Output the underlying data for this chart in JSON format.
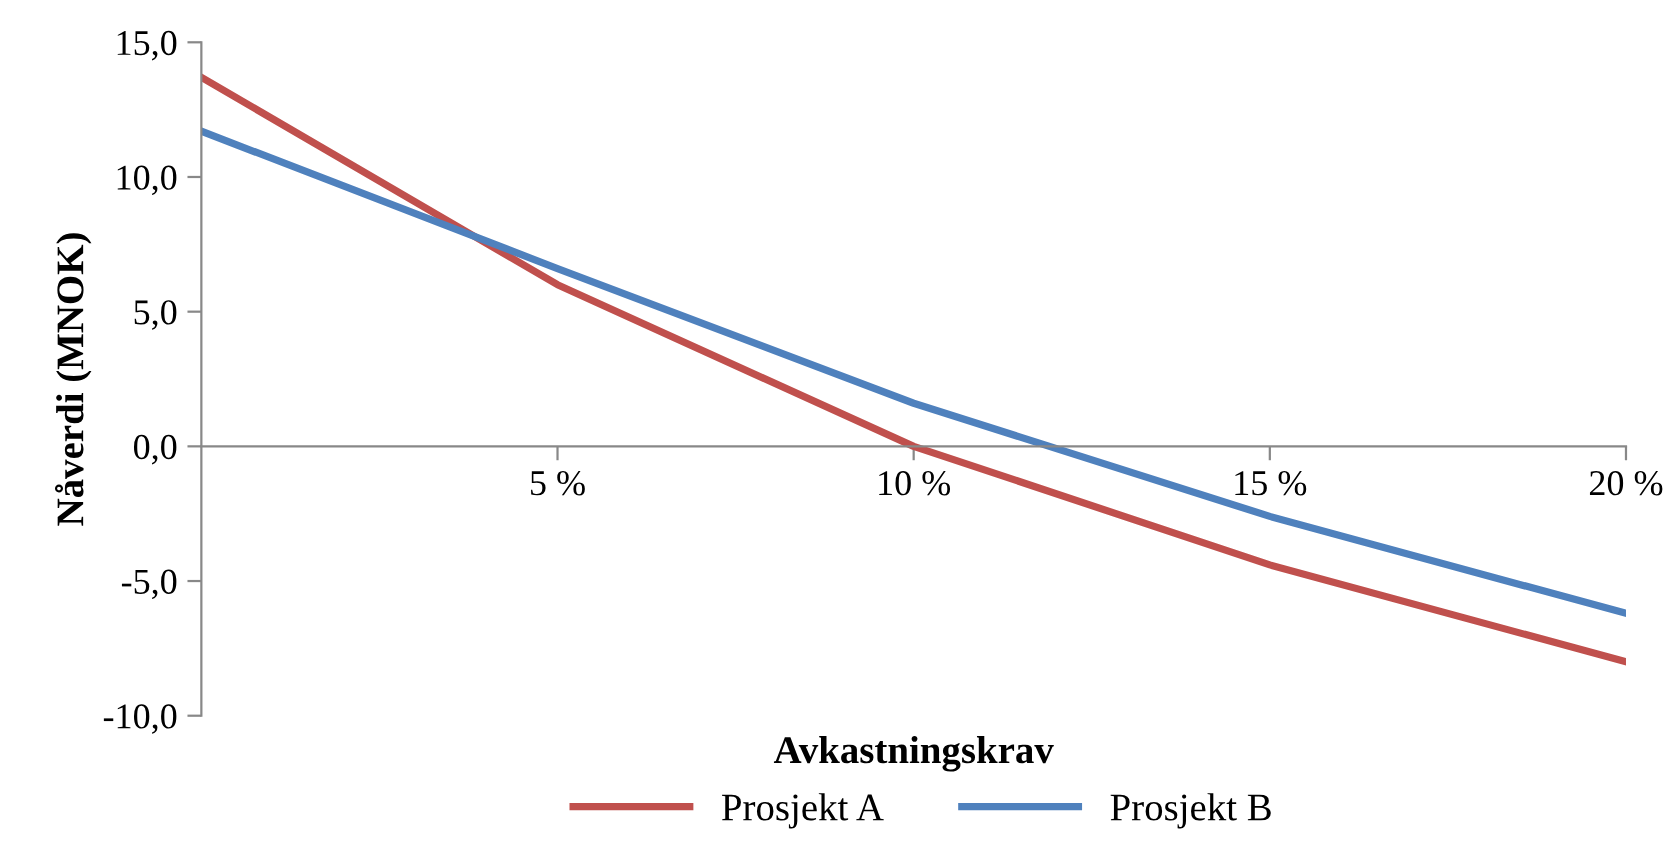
{
  "chart_data": {
    "type": "line",
    "xlabel": "Avkastningskrav",
    "ylabel": "Nåverdi (MNOK)",
    "x": [
      0,
      5,
      10,
      15,
      20
    ],
    "series": [
      {
        "name": "Prosjekt A",
        "color": "#c0504d",
        "values": [
          13.7,
          6.0,
          0.0,
          -4.4,
          -8.0
        ]
      },
      {
        "name": "Prosjekt B",
        "color": "#4f81bd",
        "values": [
          11.7,
          6.6,
          1.6,
          -2.6,
          -6.2
        ]
      }
    ],
    "xlim": [
      0,
      20
    ],
    "xticks": [
      {
        "value": 5,
        "label": "5 %"
      },
      {
        "value": 10,
        "label": "10 %"
      },
      {
        "value": 15,
        "label": "15 %"
      },
      {
        "value": 20,
        "label": "20 %"
      }
    ],
    "ylim": [
      -10,
      15
    ],
    "yticks": [
      {
        "value": -10,
        "label": "-10,0"
      },
      {
        "value": -5,
        "label": "-5,0"
      },
      {
        "value": 0,
        "label": "0,0"
      },
      {
        "value": 5,
        "label": "5,0"
      },
      {
        "value": 10,
        "label": "10,0"
      },
      {
        "value": 15,
        "label": "15,0"
      }
    ],
    "grid": false,
    "legend": "bottom",
    "marker": "none",
    "line_style": "solid"
  }
}
